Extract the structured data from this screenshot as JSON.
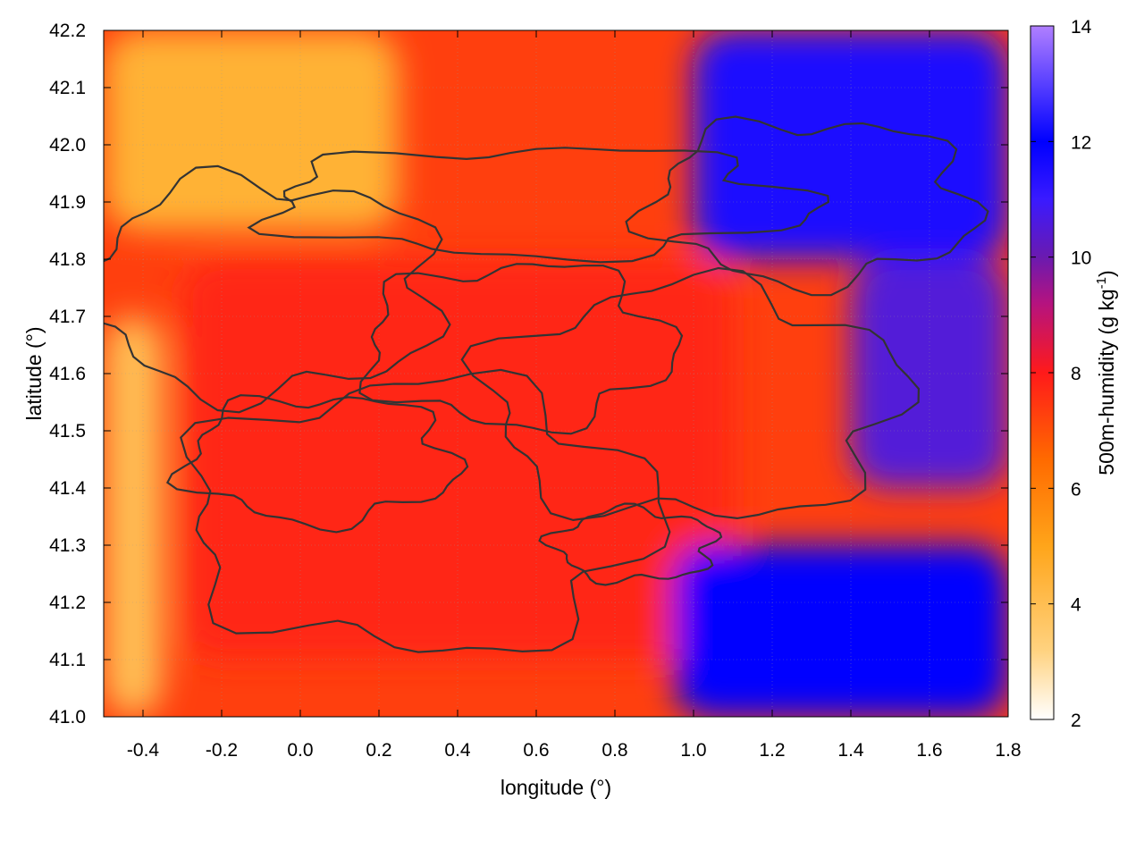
{
  "chart_data": {
    "type": "heatmap",
    "xlabel": "longitude (°)",
    "ylabel": "latitude (°)",
    "colorbar_label": "500m-humidity (g kg",
    "colorbar_label_sup": "-1",
    "colorbar_label_end": ")",
    "xlim": [
      -0.5,
      1.8
    ],
    "ylim": [
      41.0,
      42.2
    ],
    "clim": [
      2,
      14
    ],
    "x_ticks": [
      -0.4,
      -0.2,
      0.0,
      0.2,
      0.4,
      0.6,
      0.8,
      1.0,
      1.2,
      1.4,
      1.6,
      1.8
    ],
    "x_tick_labels": [
      "-0.4",
      "-0.2",
      "0.0",
      "0.2",
      "0.4",
      "0.6",
      "0.8",
      "1.0",
      "1.2",
      "1.4",
      "1.6",
      "1.8"
    ],
    "y_ticks": [
      41.0,
      41.1,
      41.2,
      41.3,
      41.4,
      41.5,
      41.6,
      41.7,
      41.8,
      41.9,
      42.0,
      42.1,
      42.2
    ],
    "y_tick_labels": [
      "41.0",
      "41.1",
      "41.2",
      "41.3",
      "41.4",
      "41.5",
      "41.6",
      "41.7",
      "41.8",
      "41.9",
      "42.0",
      "42.1",
      "42.2"
    ],
    "cbar_ticks": [
      2,
      4,
      6,
      8,
      10,
      12,
      14
    ],
    "cbar_tick_labels": [
      "2",
      "4",
      "6",
      "8",
      "10",
      "12",
      "14"
    ],
    "colormap": [
      "#ffffff",
      "#ffd27f",
      "#ffa51a",
      "#ff6a00",
      "#ff1a1a",
      "#b5137f",
      "#6a1ab0",
      "#3a1aff",
      "#0000ff",
      "#b07fff"
    ],
    "colormap_stops": [
      2,
      3.2,
      5,
      6.5,
      8,
      9.2,
      10,
      11,
      12,
      14
    ],
    "grid": true,
    "contour_color": "#333333",
    "humidity_field_regions": [
      {
        "region": "north-west",
        "lon": [
          -0.5,
          0.25
        ],
        "lat": [
          41.85,
          42.2
        ],
        "value": 4.5
      },
      {
        "region": "west edge",
        "lon": [
          -0.5,
          -0.35
        ],
        "lat": [
          41.0,
          41.7
        ],
        "value": 4.0
      },
      {
        "region": "central",
        "lon": [
          -0.3,
          1.1
        ],
        "lat": [
          41.1,
          41.8
        ],
        "value": 7.8
      },
      {
        "region": "north-east",
        "lon": [
          1.0,
          1.8
        ],
        "lat": [
          41.8,
          42.2
        ],
        "value": 11.5
      },
      {
        "region": "south-east sea",
        "lon": [
          0.95,
          1.8
        ],
        "lat": [
          41.0,
          41.3
        ],
        "value": 12.0
      },
      {
        "region": "east",
        "lon": [
          1.4,
          1.8
        ],
        "lat": [
          41.4,
          41.8
        ],
        "value": 10.5
      }
    ]
  }
}
